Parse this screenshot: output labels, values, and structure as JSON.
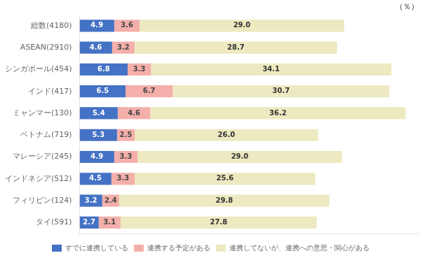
{
  "chart_data": {
    "type": "bar",
    "orientation": "horizontal",
    "stacked": true,
    "categories": [
      "総数(4180)",
      "ASEAN(2910)",
      "シンガポール(454)",
      "インド(417)",
      "ミャンマー(130)",
      "ベトナム(719)",
      "マレーシア(245)",
      "インドネシア(512)",
      "フィリピン(124)",
      "タイ(591)"
    ],
    "series": [
      {
        "name": "すでに連携している",
        "color": "#4472C4",
        "values": [
          4.9,
          4.6,
          6.8,
          6.5,
          5.4,
          5.3,
          4.9,
          4.5,
          3.2,
          2.7
        ],
        "value_labels": [
          "4.9",
          "4.6",
          "6.8",
          "6.5",
          "5.4",
          "5.3",
          "4.9",
          "4.5",
          "3.2",
          "2.7"
        ]
      },
      {
        "name": "連携する予定がある",
        "color": "#F4AFAB",
        "values": [
          3.6,
          3.2,
          3.3,
          6.7,
          4.6,
          2.5,
          3.3,
          3.3,
          2.4,
          3.1
        ],
        "value_labels": [
          "3.6",
          "3.2",
          "3.3",
          "6.7",
          "4.6",
          "2.5",
          "3.3",
          "3.3",
          "2.4",
          "3.1"
        ]
      },
      {
        "name": "連携してないが、連携への意思・関心がある",
        "color": "#EDE9C0",
        "values": [
          29.0,
          28.7,
          34.1,
          30.7,
          36.2,
          26.0,
          29.0,
          25.6,
          29.8,
          27.8
        ],
        "value_labels": [
          "29.0",
          "28.7",
          "34.1",
          "30.7",
          "36.2",
          "26.0",
          "29.0",
          "25.6",
          "29.8",
          "27.8"
        ]
      }
    ],
    "xlim": [
      0,
      48.048
    ],
    "annotations": [
      {
        "text": "（％）"
      }
    ],
    "data_labels": true,
    "tick_labels": "y",
    "grid": false,
    "legend": "bottom"
  }
}
